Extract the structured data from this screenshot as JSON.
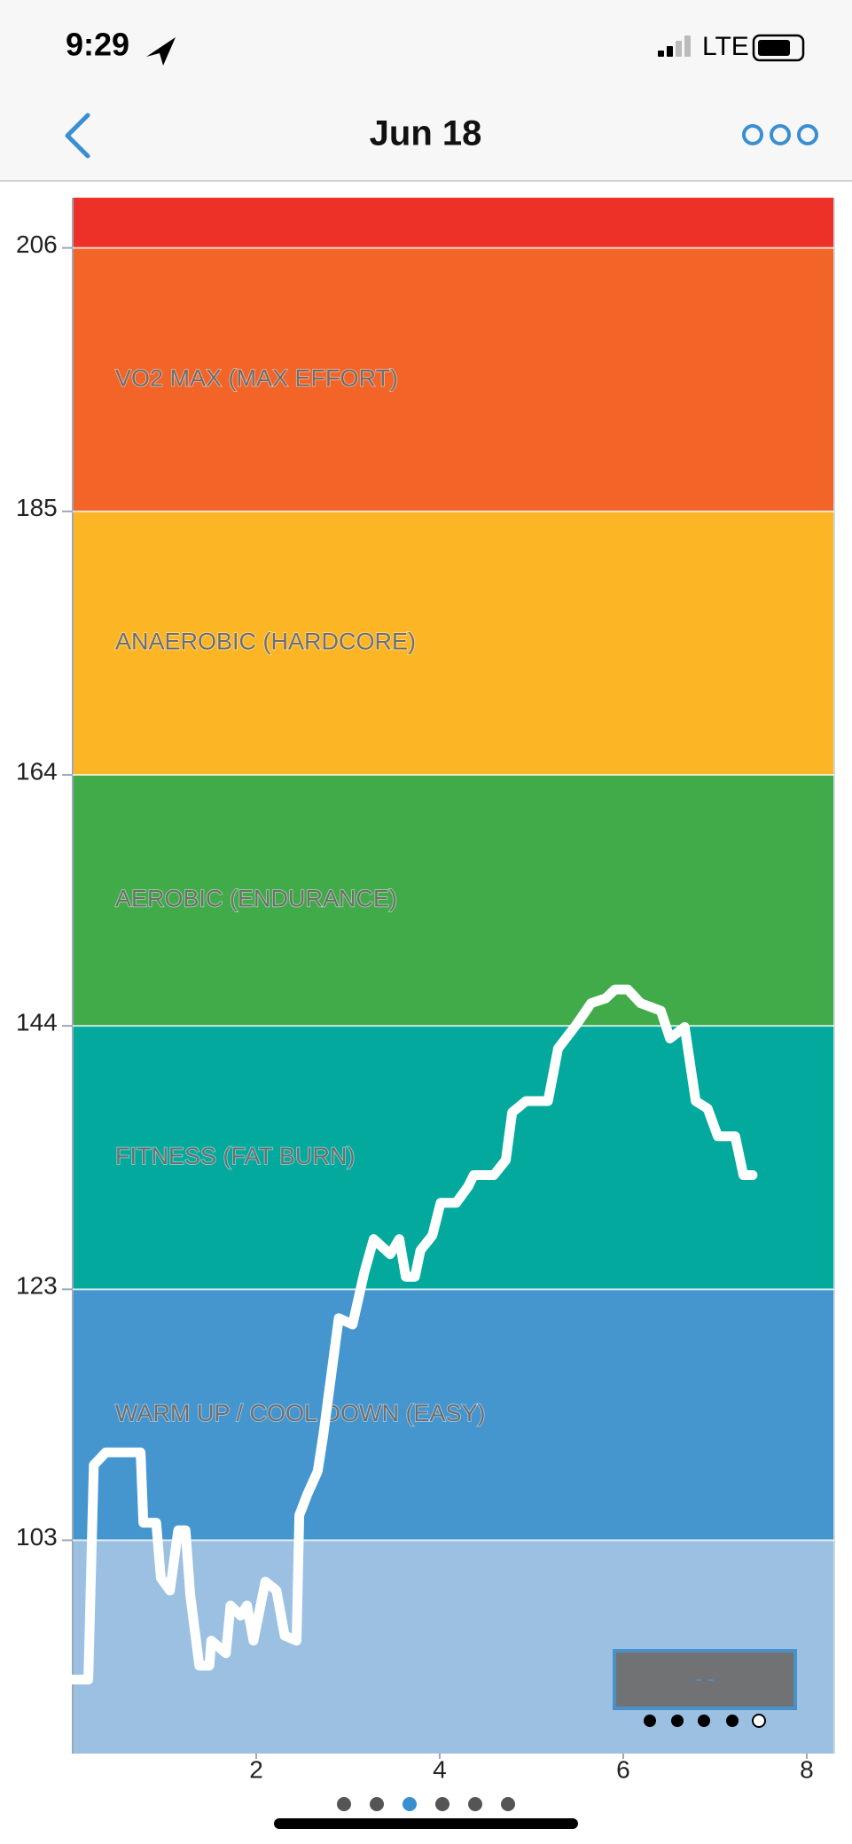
{
  "status_bar": {
    "time": "9:29",
    "network": "LTE"
  },
  "header": {
    "title": "Jun 18"
  },
  "chart_data": {
    "type": "line",
    "x": [
      0,
      0.17,
      0.23,
      0.36,
      0.74,
      0.77,
      0.91,
      0.96,
      1.06,
      1.15,
      1.23,
      1.28,
      1.38,
      1.49,
      1.51,
      1.67,
      1.72,
      1.83,
      1.9,
      1.97,
      2.1,
      2.22,
      2.31,
      2.44,
      2.47,
      2.56,
      2.67,
      2.73,
      2.9,
      3.05,
      3.18,
      3.28,
      3.46,
      3.56,
      3.63,
      3.73,
      3.79,
      3.92,
      4.01,
      4.18,
      4.31,
      4.37,
      4.59,
      4.72,
      4.79,
      4.94,
      5.18,
      5.29,
      5.49,
      5.65,
      5.81,
      5.91,
      6.05,
      6.19,
      6.41,
      6.51,
      6.67,
      6.79,
      6.92,
      7.03,
      7.22,
      7.31,
      7.41
    ],
    "values": [
      91.9,
      91.9,
      109,
      110,
      110,
      104.4,
      104.4,
      100,
      99,
      103.8,
      103.8,
      98.7,
      93,
      93,
      95,
      94,
      97.8,
      97,
      97.8,
      95,
      99.7,
      99,
      95.4,
      95,
      105,
      106.7,
      108.5,
      111.3,
      120.7,
      120.2,
      124.4,
      127,
      125.8,
      127,
      124,
      124,
      126.1,
      127.3,
      129.9,
      129.9,
      131.2,
      132.1,
      132.1,
      133.3,
      137.1,
      138,
      138,
      142.2,
      144.1,
      145.8,
      146.2,
      146.9,
      146.9,
      145.8,
      145.2,
      143,
      143.9,
      138,
      137.4,
      135.2,
      135.2,
      132.1,
      132.1
    ],
    "color": "#ffffff",
    "xlim": [
      0,
      8.3
    ],
    "xticks": [
      2,
      4,
      6,
      8
    ],
    "ylim": [
      86,
      210
    ],
    "yticks": [
      103,
      123,
      144,
      164,
      185,
      206
    ],
    "zones": [
      {
        "from": 86,
        "to": 103,
        "color": "#9bc0e2"
      },
      {
        "from": 103,
        "to": 123,
        "color": "#4596cf",
        "label": "WARM UP / COOL DOWN (EASY)"
      },
      {
        "from": 123,
        "to": 144,
        "color": "#04a99d",
        "label": "FITNESS  (FAT BURN)"
      },
      {
        "from": 144,
        "to": 164,
        "color": "#41ab4a",
        "label": "AEROBIC  (ENDURANCE)"
      },
      {
        "from": 164,
        "to": 185,
        "color": "#fcb525",
        "label": "ANAEROBIC  (HARDCORE)"
      },
      {
        "from": 185,
        "to": 206,
        "color": "#f26427",
        "label": "VO2 MAX  (MAX EFFORT)"
      },
      {
        "from": 206,
        "to": 210,
        "color": "#ee3128"
      }
    ],
    "inset_text": "- -"
  }
}
